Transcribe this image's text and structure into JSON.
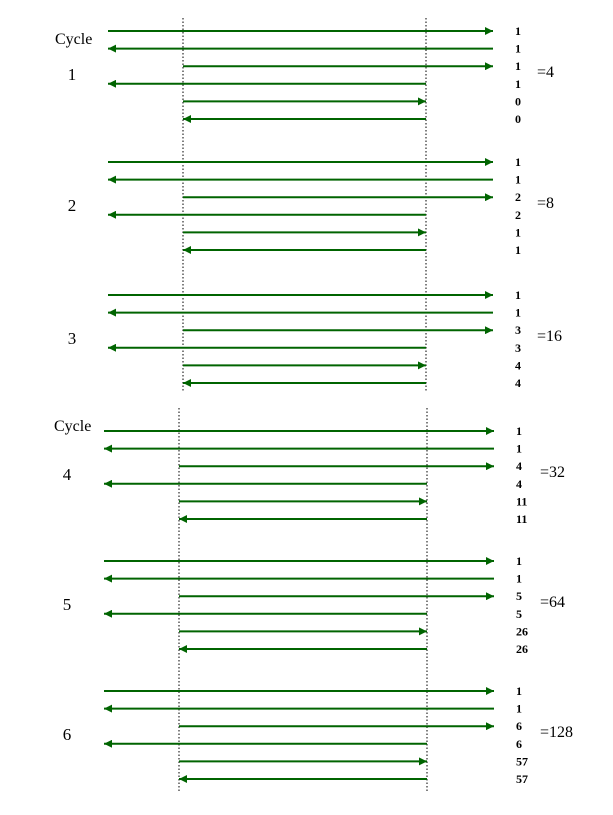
{
  "colors": {
    "arrow": "#006400",
    "guide": "#000000",
    "text": "#000000"
  },
  "panels": [
    {
      "heading": "Cycle",
      "cycles": [
        {
          "label": "1",
          "total": "=4",
          "counts": [
            "1",
            "1",
            "1",
            "1",
            "0",
            "0"
          ]
        },
        {
          "label": "2",
          "total": "=8",
          "counts": [
            "1",
            "1",
            "2",
            "2",
            "1",
            "1"
          ]
        },
        {
          "label": "3",
          "total": "=16",
          "counts": [
            "1",
            "1",
            "3",
            "3",
            "4",
            "4"
          ]
        }
      ]
    },
    {
      "heading": "Cycle",
      "cycles": [
        {
          "label": "4",
          "total": "=32",
          "counts": [
            "1",
            "1",
            "4",
            "4",
            "11",
            "11"
          ]
        },
        {
          "label": "5",
          "total": "=64",
          "counts": [
            "1",
            "1",
            "5",
            "5",
            "26",
            "26"
          ]
        },
        {
          "label": "6",
          "total": "=128",
          "counts": [
            "1",
            "1",
            "6",
            "6",
            "57",
            "57"
          ]
        }
      ]
    }
  ]
}
